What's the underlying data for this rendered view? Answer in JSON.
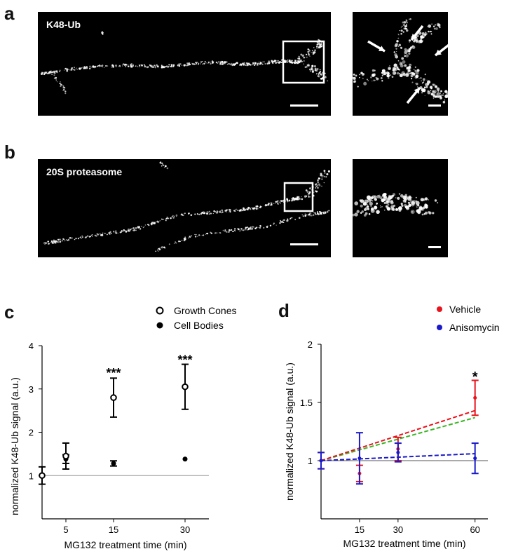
{
  "panels": {
    "a": {
      "letter": "a",
      "label": "K48-Ub"
    },
    "b": {
      "letter": "b",
      "label": "20S proteasome"
    },
    "c": {
      "letter": "c"
    },
    "d": {
      "letter": "d"
    }
  },
  "chart_data": [
    {
      "type": "scatter",
      "panel": "c",
      "title": "",
      "xlabel": "MG132 treatment time (min)",
      "ylabel": "normalized K48-Ub signal (a.u.)",
      "xlim": [
        0,
        35
      ],
      "ylim": [
        0,
        4
      ],
      "x_ticks": [
        5,
        15,
        30
      ],
      "y_ticks": [
        1,
        2,
        3,
        4
      ],
      "reference_line": 1,
      "legend_position": "top-right",
      "series": [
        {
          "name": "Growth Cones",
          "marker": "open-circle",
          "x": [
            0,
            5,
            15,
            30
          ],
          "y": [
            1.0,
            1.45,
            2.8,
            3.05
          ],
          "err": [
            0.2,
            0.3,
            0.45,
            0.52
          ]
        },
        {
          "name": "Cell Bodies",
          "marker": "filled-circle",
          "x": [
            0,
            5,
            15,
            30
          ],
          "y": [
            1.0,
            1.38,
            1.28,
            1.38
          ],
          "err": [
            0.05,
            0.1,
            0.06,
            0.03
          ]
        }
      ],
      "annotations": [
        {
          "x": 15,
          "y": 3.5,
          "text": "***"
        },
        {
          "x": 30,
          "y": 3.8,
          "text": "***"
        }
      ]
    },
    {
      "type": "line",
      "panel": "d",
      "title": "",
      "xlabel": "MG132 treatment time (min)",
      "ylabel": "normalized K48-Ub signal (a.u.)",
      "xlim": [
        0,
        65
      ],
      "ylim": [
        0.5,
        2
      ],
      "x_ticks": [
        15,
        30,
        60
      ],
      "y_ticks": [
        1,
        1.5,
        2
      ],
      "reference_line": 1,
      "legend_position": "top-right",
      "series": [
        {
          "name": "Vehicle",
          "color": "#e8131b",
          "x": [
            0,
            15,
            30,
            60
          ],
          "y": [
            1.0,
            0.89,
            1.1,
            1.54
          ],
          "err": [
            0.07,
            0.07,
            0.1,
            0.15
          ],
          "fit": [
            [
              0,
              1.0
            ],
            [
              60,
              1.43
            ]
          ]
        },
        {
          "name": "Anisomycin",
          "color": "#1a19c9",
          "x": [
            0,
            15,
            30,
            60
          ],
          "y": [
            1.0,
            1.02,
            1.07,
            1.02
          ],
          "err": [
            0.07,
            0.22,
            0.08,
            0.13
          ],
          "fit": [
            [
              0,
              1.0
            ],
            [
              60,
              1.06
            ]
          ]
        }
      ],
      "extra_fit": {
        "color": "#3ab525",
        "line": [
          [
            0,
            1.0
          ],
          [
            60,
            1.37
          ]
        ]
      },
      "annotations": [
        {
          "x": 60,
          "y": 1.74,
          "text": "*"
        }
      ]
    }
  ]
}
